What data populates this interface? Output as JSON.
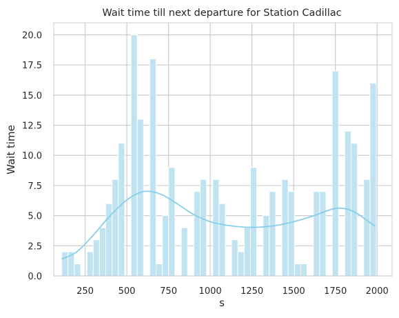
{
  "chart_data": {
    "type": "bar",
    "title": "Wait time till next departure for Station Cadillac",
    "xlabel": "s",
    "ylabel": "Wait time",
    "xlim": [
      62,
      2090
    ],
    "ylim": [
      0,
      21
    ],
    "xticks": [
      250,
      500,
      750,
      1000,
      1250,
      1500,
      1750,
      2000
    ],
    "yticks": [
      0.0,
      2.5,
      5.0,
      7.5,
      10.0,
      12.5,
      15.0,
      17.5,
      20.0
    ],
    "xtick_labels": [
      "250",
      "500",
      "750",
      "1000",
      "1250",
      "1500",
      "1750",
      "2000"
    ],
    "ytick_labels": [
      "0.0",
      "2.5",
      "5.0",
      "7.5",
      "10.0",
      "12.5",
      "15.0",
      "17.5",
      "20.0"
    ],
    "grid": true,
    "bin_start": 110,
    "bin_width": 37.7,
    "values": [
      2,
      2,
      1,
      0,
      2,
      3,
      4,
      6,
      8,
      11,
      0,
      20,
      13,
      0,
      18,
      1,
      5,
      9,
      0,
      4,
      0,
      7,
      8,
      0,
      8,
      6,
      0,
      3,
      2,
      4,
      9,
      0,
      5,
      7,
      0,
      8,
      7,
      1,
      1,
      0,
      7,
      7,
      0,
      17,
      0,
      12,
      11,
      0,
      8,
      16
    ],
    "kde": {
      "x": [
        110,
        200,
        300,
        400,
        500,
        600,
        700,
        800,
        900,
        1000,
        1100,
        1200,
        1300,
        1400,
        1500,
        1600,
        1700,
        1750,
        1800,
        1850,
        1900,
        1950,
        1990
      ],
      "y": [
        1.4,
        2.0,
        3.4,
        5.0,
        6.3,
        7.0,
        6.8,
        6.0,
        5.1,
        4.5,
        4.2,
        4.05,
        4.05,
        4.2,
        4.5,
        4.9,
        5.4,
        5.6,
        5.6,
        5.4,
        5.0,
        4.5,
        4.1
      ]
    },
    "colors": {
      "bar_fill": "#bfe3f1",
      "bar_edge": "#ffffff",
      "kde_line": "#87ceeb",
      "grid": "#cccccc",
      "axis_edge": "#cccccc"
    }
  }
}
